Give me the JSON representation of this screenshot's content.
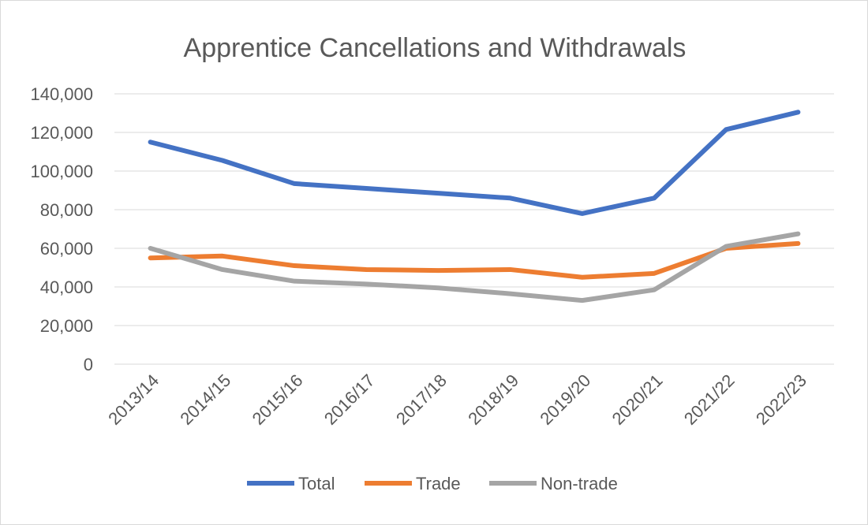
{
  "chart_data": {
    "type": "line",
    "title": "Apprentice Cancellations and Withdrawals",
    "xlabel": "",
    "ylabel": "",
    "categories": [
      "2013/14",
      "2014/15",
      "2015/16",
      "2016/17",
      "2017/18",
      "2018/19",
      "2019/20",
      "2020/21",
      "2021/22",
      "2022/23"
    ],
    "ylim": [
      0,
      140000
    ],
    "yticks": [
      0,
      20000,
      40000,
      60000,
      80000,
      100000,
      120000,
      140000
    ],
    "ytick_labels": [
      "0",
      "20,000",
      "40,000",
      "60,000",
      "80,000",
      "100,000",
      "120,000",
      "140,000"
    ],
    "grid": true,
    "legend": "bottom",
    "series": [
      {
        "name": "Total",
        "color": "#4472C4",
        "values": [
          115000,
          105500,
          93500,
          91000,
          88500,
          86000,
          78000,
          86000,
          121500,
          130500
        ]
      },
      {
        "name": "Trade",
        "color": "#ED7D31",
        "values": [
          55000,
          56000,
          51000,
          49000,
          48500,
          49000,
          45000,
          47000,
          60000,
          62500
        ]
      },
      {
        "name": "Non-trade",
        "color": "#A5A5A5",
        "values": [
          60000,
          49000,
          43000,
          41500,
          39500,
          36500,
          33000,
          38500,
          61000,
          67500
        ]
      }
    ]
  }
}
